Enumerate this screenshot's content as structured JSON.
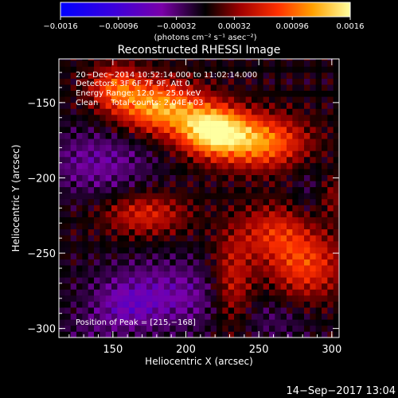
{
  "chart_data": {
    "type": "heatmap",
    "title": "Reconstructed RHESSI Image",
    "xlabel": "Heliocentric X (arcsec)",
    "ylabel": "Heliocentric Y (arcsec)",
    "xlim": [
      113,
      305
    ],
    "ylim": [
      -306,
      -121
    ],
    "xticks": [
      150,
      200,
      250,
      300
    ],
    "yticks": [
      -150,
      -200,
      -250,
      -300
    ],
    "colorbar": {
      "min": -0.0016,
      "max": 0.0016,
      "tick_values": [
        -0.0016,
        -0.00096,
        -0.00032,
        0.00032,
        0.00096,
        0.0016
      ],
      "tick_labels": [
        "−0.0016",
        "−0.00096",
        "−0.00032",
        "0.00032",
        "0.00096",
        "0.0016"
      ],
      "units": "(photons cm⁻² s⁻¹ asec⁻²)"
    },
    "info": {
      "time": "20−Dec−2014 10:52:14.000 to 11:02:14.000",
      "detectors": "Detectors: 3F 6F 7F 9F, Att 0",
      "energy": "Energy Range: 12.0 − 25.0 keV",
      "clean": "Clean     Total counts: 2.04E+03"
    },
    "peak_text": "Position of Peak = [215,−168]",
    "peak": [
      215,
      -168
    ],
    "sources": [
      {
        "x": 218,
        "y": -168,
        "sx": 16,
        "sy": 11,
        "amp": 0.0015
      },
      {
        "x": 182,
        "y": -153,
        "sx": 20,
        "sy": 12,
        "amp": 0.0012
      },
      {
        "x": 250,
        "y": -176,
        "sx": 22,
        "sy": 12,
        "amp": 0.0011
      },
      {
        "x": 152,
        "y": -140,
        "sx": 13,
        "sy": 10,
        "amp": 0.0008
      },
      {
        "x": 172,
        "y": -224,
        "sx": 20,
        "sy": 10,
        "amp": 0.00062
      },
      {
        "x": 260,
        "y": -236,
        "sx": 17,
        "sy": 13,
        "amp": 0.00058
      },
      {
        "x": 282,
        "y": -258,
        "sx": 18,
        "sy": 16,
        "amp": 0.00075
      },
      {
        "x": 232,
        "y": -270,
        "sx": 10,
        "sy": 22,
        "amp": 0.00062
      },
      {
        "x": 300,
        "y": -212,
        "sx": 8,
        "sy": 10,
        "amp": 0.00035
      },
      {
        "x": 140,
        "y": -190,
        "sx": 26,
        "sy": 16,
        "amp": -0.00045
      },
      {
        "x": 185,
        "y": -278,
        "sx": 34,
        "sy": 17,
        "amp": -0.0005
      },
      {
        "x": 160,
        "y": -285,
        "sx": 14,
        "sy": 10,
        "amp": -0.0003
      },
      {
        "x": 287,
        "y": -210,
        "sx": 10,
        "sy": 14,
        "amp": -0.0002
      },
      {
        "x": 260,
        "y": -295,
        "sx": 20,
        "sy": 10,
        "amp": -0.00022
      },
      {
        "x": 135,
        "y": -300,
        "sx": 16,
        "sy": 8,
        "amp": -0.00018
      }
    ]
  },
  "timestamp": "14−Sep−2017 13:04"
}
